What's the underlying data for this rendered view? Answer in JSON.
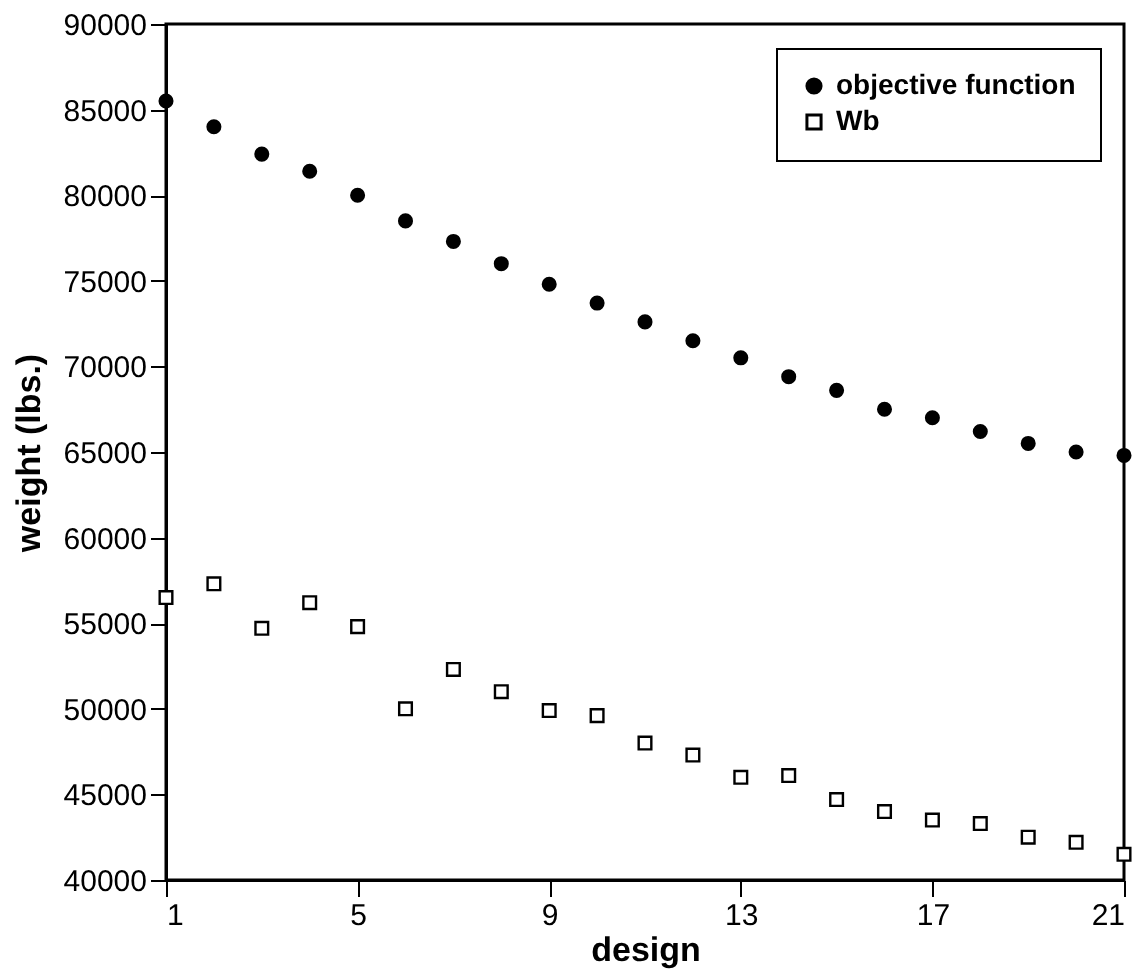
{
  "chart_data": {
    "type": "scatter",
    "xlabel": "design",
    "ylabel": "weight (lbs.)",
    "x": [
      1,
      2,
      3,
      4,
      5,
      6,
      7,
      8,
      9,
      10,
      11,
      12,
      13,
      14,
      15,
      16,
      17,
      18,
      19,
      20,
      21
    ],
    "series": [
      {
        "name": "objective function",
        "color": "#000000",
        "marker": "circle",
        "values": [
          85500,
          84000,
          82400,
          81400,
          80000,
          78500,
          77300,
          76000,
          74800,
          73700,
          72600,
          71500,
          70500,
          69400,
          68600,
          67500,
          67000,
          66200,
          65500,
          65000,
          64800
        ]
      },
      {
        "name": "Wb",
        "color": "#000000",
        "marker": "square",
        "values": [
          56500,
          57300,
          54700,
          56200,
          54800,
          50000,
          52300,
          51000,
          49900,
          49600,
          48000,
          47300,
          46000,
          46100,
          44700,
          44000,
          43500,
          43300,
          42500,
          42200,
          41500
        ]
      }
    ],
    "xlim": [
      1,
      21
    ],
    "xticks": [
      1,
      5,
      9,
      13,
      17,
      21
    ],
    "ylim": [
      40000,
      90000
    ],
    "yticks": [
      40000,
      45000,
      50000,
      55000,
      60000,
      65000,
      70000,
      75000,
      80000,
      85000,
      90000
    ],
    "grid": false,
    "legend": "top right"
  }
}
